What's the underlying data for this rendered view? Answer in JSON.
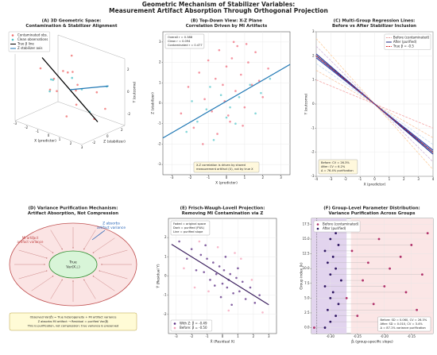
{
  "title": [
    "Geometric Mechanism of Stabilizer Variables:",
    "Measurement Artifact Absorption Through Orthogonal Projection"
  ],
  "chart_data": [
    {
      "type": "scatter3d",
      "title": [
        "(A) 3D Geometric Space:",
        "Contamination & Stabilizer Alignment"
      ],
      "xlabel": "X (predictor)",
      "zlabel": "Z (stabilizer)",
      "ylabel": "Y (outcome)",
      "xticks": [
        -3,
        -2,
        -1,
        0,
        1,
        2,
        3
      ],
      "zticks": [
        -2,
        0,
        2
      ],
      "yticks": [
        -2,
        0,
        2
      ],
      "legend": "upper left",
      "series": [
        {
          "name": "Contaminated obs.",
          "color": "#f07070",
          "x": [
            -2,
            -1.5,
            -1,
            -0.5,
            0,
            0.5,
            1,
            1.5,
            2,
            -1.8,
            0.8,
            2.4,
            -0.3,
            1.2,
            -2.4
          ],
          "y": [
            1.5,
            -0.8,
            2.2,
            0.4,
            -1.6,
            1.9,
            -0.5,
            0.9,
            -2,
            0.2,
            2.6,
            -1.2,
            -2.5,
            1.1,
            -0.3
          ],
          "z": [
            -1,
            0.5,
            1.8,
            -2,
            0.9,
            -0.4,
            2.2,
            -1.5,
            0.3,
            2.5,
            -2.2,
            1.2,
            0,
            -0.8,
            1.5
          ]
        },
        {
          "name": "Clean observations",
          "color": "#4fc3c8",
          "x": [
            -1.2,
            0.3,
            1.7,
            -0.6,
            2.1,
            -2.2,
            0.9
          ],
          "y": [
            0.6,
            -0.2,
            -1.4,
            1.2,
            0.5,
            -1.1,
            1.7
          ],
          "z": [
            -0.5,
            1.2,
            0.1,
            -1.7,
            1.9,
            0.6,
            -1.1
          ]
        }
      ],
      "lines": [
        {
          "name": "True β line",
          "color": "#000000",
          "x": [
            -2.5,
            2.5
          ],
          "y": [
            2,
            -2
          ],
          "z": [
            0,
            0
          ]
        },
        {
          "name": "Z stabilizer axis",
          "color": "#1f77b4",
          "x": [
            0,
            2.5
          ],
          "y": [
            0,
            0.8
          ],
          "z": [
            0,
            1.5
          ]
        }
      ]
    },
    {
      "type": "scatter",
      "title": [
        "(B) Top-Down View: X-Z Plane",
        "Correlation Driven by MI Artifacts"
      ],
      "xlabel": "X (predictor)",
      "ylabel": "Z (stabilizer)",
      "xlim": [
        -3.5,
        3.5
      ],
      "ylim": [
        -3.5,
        3.5
      ],
      "xticks": [
        -3,
        -2,
        -1,
        0,
        1,
        2,
        3
      ],
      "yticks": [
        -3,
        -2,
        -1,
        0,
        1,
        2,
        3
      ],
      "grid": true,
      "series": [
        {
          "name": "Contaminated",
          "color": "#f07080",
          "x": [
            -2.5,
            -2.1,
            -1.8,
            -1.5,
            -1.2,
            -1.0,
            -0.8,
            -0.6,
            -0.4,
            -0.2,
            0,
            0.1,
            0.3,
            0.5,
            0.6,
            0.8,
            1.0,
            1.2,
            1.4,
            1.6,
            1.8,
            2.0,
            2.3,
            -0.5,
            0.4,
            -1.3,
            0.9,
            -0.1,
            1.1,
            0.2
          ],
          "y": [
            -0.5,
            0.8,
            -1.2,
            1.5,
            0.2,
            2.1,
            -0.4,
            1.2,
            2.6,
            0.9,
            1.8,
            -0.6,
            2.2,
            0.6,
            2.8,
            1.4,
            -0.2,
            2.0,
            0.9,
            2.5,
            1.1,
            0.3,
            1.7,
            -1.5,
            3.0,
            -2.0,
            -1.1,
            0.1,
            2.9,
            -0.9
          ]
        },
        {
          "name": "Clean",
          "color": "#5cc8cc",
          "x": [
            -2.2,
            -1.6,
            -1.1,
            -0.7,
            -0.3,
            0.2,
            0.7,
            1.3,
            1.9,
            2.4,
            -0.9,
            0.5,
            1.6,
            -1.9,
            0.0
          ],
          "y": [
            -1.4,
            -0.9,
            -0.3,
            -1.8,
            0.4,
            -0.2,
            0.3,
            0.9,
            0.5,
            1.2,
            0.8,
            -1.0,
            -0.5,
            0.1,
            -0.7
          ]
        }
      ],
      "fit_line": {
        "color": "#1f77b4",
        "x": [
          -3.5,
          3.5
        ],
        "y": [
          -1.7,
          1.9
        ]
      },
      "notes": [
        {
          "lines": [
            "Overall r = 0.388",
            "Clean   r = 0.094",
            "Contaminated r = 0.477"
          ],
          "loc": "upper left",
          "bg": "#ffffff"
        },
        {
          "lines": [
            "X-Z correlation is driven by shared",
            "measurement artifact (U), not by true X"
          ],
          "loc": "lower center",
          "bg": "#fff8dc"
        }
      ]
    },
    {
      "type": "line",
      "title": [
        "(C) Multi-Group Regression Lines:",
        "Before vs After Stabilizer Inclusion"
      ],
      "xlabel": "X (predictor)",
      "ylabel": "Y (outcome)",
      "xlim": [
        -4,
        4
      ],
      "ylim": [
        -3,
        3
      ],
      "xticks": [
        -4,
        -3,
        -2,
        -1,
        0,
        1,
        2,
        3,
        4
      ],
      "yticks": [
        -3,
        -2,
        -1,
        0,
        1,
        2,
        3
      ],
      "grid": true,
      "legend": "upper right",
      "x": [
        -4,
        4
      ],
      "series": [
        {
          "name": "Before (contaminated)",
          "color": "#e8a0a0",
          "dash": true,
          "colors": [
            "#f4a6a6",
            "#f7c59f",
            "#c6dbef",
            "#d4b9da",
            "#fdd0a2"
          ],
          "lines": [
            [
              1.0,
              -1.0
            ],
            [
              1.4,
              -1.4
            ],
            [
              1.68,
              -1.68
            ],
            [
              2.4,
              -2.4
            ],
            [
              2.72,
              -2.72
            ]
          ]
        },
        {
          "name": "After (purified)",
          "color": "#1a237e",
          "dash": false,
          "colors": [
            "#1a237e",
            "#283593",
            "#3949ab"
          ],
          "lines": [
            [
              2.0,
              -2.0
            ],
            [
              2.08,
              -2.08
            ],
            [
              1.92,
              -1.92
            ]
          ]
        },
        {
          "name": "True β = -0.5",
          "color": "#d62728",
          "dash": true,
          "colors": [
            "#d62728"
          ],
          "lines": [
            [
              2,
              -2
            ]
          ]
        }
      ],
      "notes": [
        {
          "lines": [
            "Before: CV = 26.3%",
            "After:  CV = 6.2%",
            "Δ = 76.4% purification"
          ],
          "loc": "lower left",
          "bg": "#fff8dc"
        }
      ]
    },
    {
      "type": "scatter",
      "title": [
        "(E) Frisch-Waugh-Lovell Projection:",
        "Removing MI Contamination via Z"
      ],
      "xlabel": "X̃ (Residual X)",
      "ylabel": "Ỹ (Residual Y)",
      "xlim": [
        -3.5,
        3.5
      ],
      "ylim": [
        -3,
        3
      ],
      "xticks": [
        -3,
        -2,
        -1,
        0,
        1,
        2,
        3
      ],
      "yticks": [
        -2,
        -1,
        0,
        1,
        2
      ],
      "grid": true,
      "legend": "lower left",
      "series": [
        {
          "name": "With Z: β̂ = -0.49",
          "color": "#5b2c83",
          "x": [
            -2.8,
            -2.3,
            -2,
            -1.7,
            -1.4,
            -1.2,
            -1,
            -0.8,
            -0.6,
            -0.4,
            -0.2,
            0,
            0.1,
            0.3,
            0.5,
            0.7,
            0.9,
            1.1,
            1.3,
            1.5,
            1.8,
            2.1,
            2.4,
            -0.5,
            0.2,
            0.6,
            -1.1,
            1.0,
            -0.1,
            0.4
          ],
          "y": [
            1.8,
            0.9,
            1.4,
            0.3,
            1.1,
            0.2,
            0.9,
            -0.2,
            0.7,
            0.1,
            0.5,
            -0.4,
            0.3,
            -0.6,
            0.1,
            -0.9,
            -0.1,
            -0.8,
            -0.3,
            -1.2,
            -0.6,
            -1.4,
            -1.0,
            -0.5,
            1.0,
            -1.5,
            1.6,
            0.4,
            -1.1,
            -0.2
          ]
        },
        {
          "name": "Before: β̂ = -0.50",
          "color": "#f4a0b8",
          "x": [
            -2.5,
            -1.5,
            -0.9,
            -0.3,
            0.4,
            1.2,
            1.9,
            -1.8,
            0.8,
            2.6
          ],
          "y": [
            0.4,
            1.8,
            -0.8,
            1.5,
            -1.8,
            0.9,
            -0.2,
            -0.6,
            1.2,
            -1.9
          ]
        }
      ],
      "fit_line": {
        "color": "#3b1f5e",
        "x": [
          -3.3,
          3
        ],
        "y": [
          1.65,
          -1.5
        ]
      },
      "notes": [
        {
          "lines": [
            "Faded = original space",
            "Dark = purified (FWL)",
            "Line = purified slope"
          ],
          "loc": "upper left",
          "bg": "#ffffff"
        }
      ]
    },
    {
      "type": "dot",
      "title": [
        "(F) Group-Level Parameter Distribution:",
        "Variance Purification Across Groups"
      ],
      "xlabel": "β̂ⱼ (group-specific slope)",
      "ylabel": "Group index (k)",
      "xlim": [
        -0.335,
        -0.11
      ],
      "ylim": [
        -1,
        18.5
      ],
      "xticks": [
        {
          "value": -0.3,
          "label": "-0.30"
        },
        {
          "value": -0.25,
          "label": "-0.25"
        },
        {
          "value": -0.2,
          "label": "-0.20"
        },
        {
          "value": -0.15,
          "label": "-0.15"
        }
      ],
      "yticks": [
        {
          "value": 0,
          "label": "0.0"
        },
        2.5,
        {
          "value": 5,
          "label": "5.0"
        },
        7.5,
        {
          "value": 10,
          "label": "10.0"
        },
        12.5,
        {
          "value": 15,
          "label": "15.0"
        },
        17.5
      ],
      "grid": true,
      "legend": "upper left",
      "bands": [
        {
          "range": [
            -0.335,
            -0.27
          ],
          "color": "#e2d4ee"
        },
        {
          "range": [
            -0.262,
            -0.11
          ],
          "color": "#fbe6e6"
        }
      ],
      "vlines": [
        -0.325
      ],
      "groups": [
        0,
        1,
        2,
        3,
        4,
        5,
        6,
        7,
        8,
        9,
        10,
        11,
        12,
        13,
        14,
        15,
        16,
        17
      ],
      "series": [
        {
          "name": "Before (contaminated)",
          "color": "#b0306a",
          "values": [
            -0.33,
            -0.18,
            -0.25,
            -0.14,
            -0.22,
            -0.27,
            -0.16,
            -0.2,
            -0.24,
            -0.13,
            -0.19,
            -0.23,
            -0.17,
            -0.26,
            -0.15,
            -0.21,
            -0.12,
            -0.28
          ]
        },
        {
          "name": "After (purified)",
          "color": "#2c1460",
          "values": [
            -0.31,
            -0.3,
            -0.29,
            -0.305,
            -0.285,
            -0.3,
            -0.295,
            -0.31,
            -0.28,
            -0.3,
            -0.29,
            -0.305,
            -0.295,
            -0.31,
            -0.285,
            -0.3,
            -0.29,
            -0.3
          ]
        }
      ],
      "notes": [
        {
          "lines": [
            "Before: SD = 0.060, CV = 26.3%",
            "After:  SD = 0.010, CV = 3.4%",
            "Δ = 87.1% variance purification"
          ],
          "loc": "lower right",
          "bg": "#ffffff"
        }
      ]
    }
  ],
  "diagram": {
    "title": [
      "(D) Variance Purification Mechanism:",
      "Artifact Absorption, Not Compression"
    ],
    "outer_label": [
      "MI artifact",
      "artifact variance"
    ],
    "absorb_label": [
      "Z absorbs",
      "artifact variance"
    ],
    "inner_label": [
      "True",
      "Var(X⊥)"
    ],
    "box": [
      "Observed Var(β̂) = True heterogeneity + MI artifact variance",
      "Z absorbs MI artifact → Residual = purified Var(β̂)",
      "This is purification, not compression: true variance is preserved"
    ]
  }
}
